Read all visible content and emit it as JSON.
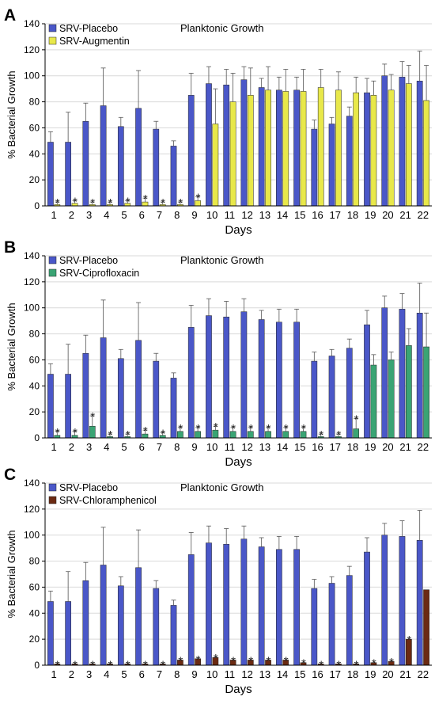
{
  "chart_data": [
    {
      "type": "bar",
      "panel_label": "A",
      "title": "Planktonic Growth",
      "xlabel": "Days",
      "ylabel": "% Bacterial Growth",
      "ylim": [
        0,
        140
      ],
      "yticks": [
        0,
        20,
        40,
        60,
        80,
        100,
        120,
        140
      ],
      "grid": true,
      "legend_position": "top-left",
      "categories": [
        "1",
        "2",
        "3",
        "4",
        "5",
        "6",
        "7",
        "8",
        "9",
        "10",
        "11",
        "12",
        "13",
        "14",
        "15",
        "16",
        "17",
        "18",
        "19",
        "20",
        "21",
        "22"
      ],
      "series": [
        {
          "name": "SRV-Placebo",
          "color": "#4a57c8",
          "values": [
            49,
            49,
            65,
            77,
            61,
            75,
            59,
            46,
            85,
            94,
            93,
            97,
            91,
            89,
            89,
            59,
            63,
            69,
            87,
            100,
            99,
            96
          ],
          "errors": [
            8,
            23,
            14,
            29,
            7,
            29,
            6,
            4,
            17,
            13,
            12,
            10,
            7,
            10,
            10,
            7,
            5,
            7,
            11,
            9,
            12,
            23
          ]
        },
        {
          "name": "SRV-Augmentin",
          "color": "#e8e84a",
          "values": [
            1,
            2,
            1,
            1,
            2,
            3,
            1,
            1,
            4,
            63,
            80,
            85,
            89,
            88,
            88,
            91,
            89,
            87,
            85,
            89,
            94,
            81
          ],
          "errors": [
            2,
            2,
            2,
            2,
            2,
            3,
            2,
            2,
            3,
            27,
            22,
            21,
            18,
            17,
            17,
            14,
            14,
            12,
            11,
            12,
            14,
            27
          ]
        }
      ],
      "significance": {
        "symbol": "*",
        "series": "SRV-Augmentin",
        "days": [
          "1",
          "2",
          "3",
          "4",
          "5",
          "6",
          "7",
          "8",
          "9"
        ]
      }
    },
    {
      "type": "bar",
      "panel_label": "B",
      "title": "Planktonic Growth",
      "xlabel": "Days",
      "ylabel": "% Bacterial Growth",
      "ylim": [
        0,
        140
      ],
      "yticks": [
        0,
        20,
        40,
        60,
        80,
        100,
        120,
        140
      ],
      "grid": true,
      "legend_position": "top-left",
      "categories": [
        "1",
        "2",
        "3",
        "4",
        "5",
        "6",
        "7",
        "8",
        "9",
        "10",
        "11",
        "12",
        "13",
        "14",
        "15",
        "16",
        "17",
        "18",
        "19",
        "20",
        "21",
        "22"
      ],
      "series": [
        {
          "name": "SRV-Placebo",
          "color": "#4a57c8",
          "values": [
            49,
            49,
            65,
            77,
            61,
            75,
            59,
            46,
            85,
            94,
            93,
            97,
            91,
            89,
            89,
            59,
            63,
            69,
            87,
            100,
            99,
            96
          ],
          "errors": [
            8,
            23,
            14,
            29,
            7,
            29,
            6,
            4,
            17,
            13,
            12,
            10,
            7,
            10,
            10,
            7,
            5,
            7,
            11,
            9,
            12,
            23
          ]
        },
        {
          "name": "SRV-Ciprofloxacin",
          "color": "#3aa474",
          "values": [
            2,
            2,
            9,
            1,
            1,
            3,
            2,
            5,
            5,
            6,
            5,
            5,
            5,
            5,
            5,
            1,
            1,
            7,
            56,
            60,
            71,
            70
          ],
          "errors": [
            3,
            3,
            8,
            2,
            2,
            3,
            2,
            3,
            3,
            3,
            3,
            3,
            3,
            3,
            3,
            2,
            2,
            8,
            8,
            6,
            13,
            26
          ]
        }
      ],
      "significance": {
        "symbol": "*",
        "series": "SRV-Ciprofloxacin",
        "days": [
          "1",
          "2",
          "3",
          "4",
          "5",
          "6",
          "7",
          "8",
          "9",
          "10",
          "11",
          "12",
          "13",
          "14",
          "15",
          "16",
          "17",
          "18"
        ]
      }
    },
    {
      "type": "bar",
      "panel_label": "C",
      "title": "Planktonic Growth",
      "xlabel": "Days",
      "ylabel": "% Bacterial Growth",
      "ylim": [
        0,
        140
      ],
      "yticks": [
        0,
        20,
        40,
        60,
        80,
        100,
        120,
        140
      ],
      "grid": true,
      "legend_position": "top-left",
      "categories": [
        "1",
        "2",
        "3",
        "4",
        "5",
        "6",
        "7",
        "8",
        "9",
        "10",
        "11",
        "12",
        "13",
        "14",
        "15",
        "16",
        "17",
        "18",
        "19",
        "20",
        "21",
        "22"
      ],
      "series": [
        {
          "name": "SRV-Placebo",
          "color": "#4a57c8",
          "values": [
            49,
            49,
            65,
            77,
            61,
            75,
            59,
            46,
            85,
            94,
            93,
            97,
            91,
            89,
            89,
            59,
            63,
            69,
            87,
            100,
            99,
            96
          ],
          "errors": [
            8,
            23,
            14,
            29,
            7,
            29,
            6,
            4,
            17,
            13,
            12,
            10,
            7,
            10,
            10,
            7,
            5,
            7,
            11,
            9,
            12,
            23
          ]
        },
        {
          "name": "SRV-Chloramphenicol",
          "color": "#6b2a12",
          "values": [
            1,
            1,
            1,
            1,
            1,
            1,
            1,
            4,
            5,
            6,
            4,
            4,
            4,
            4,
            2,
            1,
            1,
            1,
            2,
            3,
            20,
            58
          ]
        },
        ""
      ],
      "significance": {
        "symbol": "*",
        "series": "SRV-Chloramphenicol",
        "days": [
          "1",
          "2",
          "3",
          "4",
          "5",
          "6",
          "7",
          "8",
          "9",
          "10",
          "11",
          "12",
          "13",
          "14",
          "15",
          "16",
          "17",
          "18",
          "19",
          "20",
          "21"
        ]
      }
    }
  ]
}
